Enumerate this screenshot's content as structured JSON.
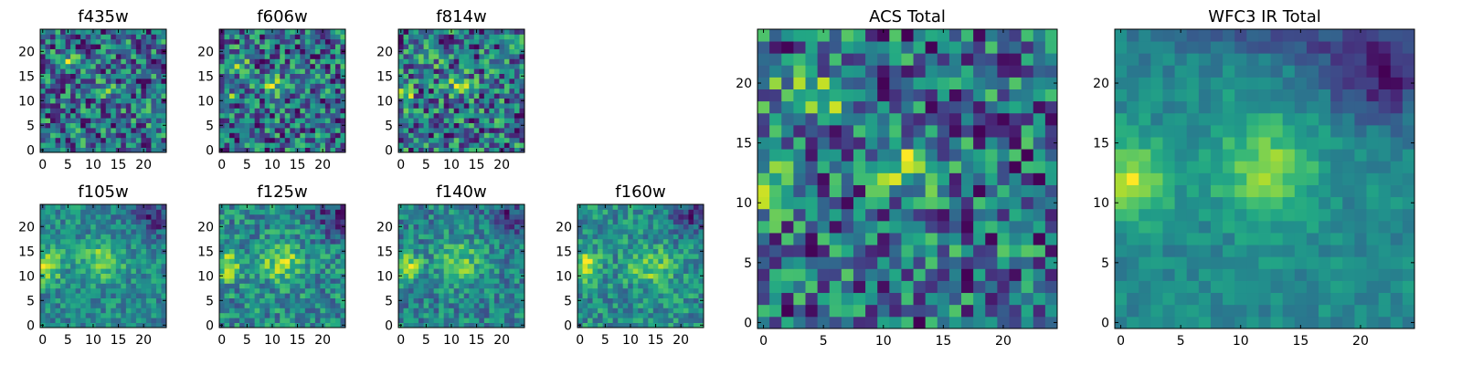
{
  "chart_data": [
    {
      "type": "heatmap",
      "title": "f435w",
      "seed": 11,
      "x_ticks": [
        "0",
        "5",
        "10",
        "15",
        "20"
      ],
      "y_ticks": [
        "0",
        "5",
        "10",
        "15",
        "20"
      ],
      "xlim": [
        0,
        24
      ],
      "ylim": [
        0,
        24
      ],
      "colormap": "viridis",
      "grid": false,
      "features": [
        {
          "x": 4,
          "y": 18,
          "sx": 2.0,
          "sy": 1.0,
          "a": 0.45
        },
        {
          "x": 12,
          "y": 13,
          "sx": 1.6,
          "sy": 1.2,
          "a": 0.35
        }
      ],
      "noise": 0.55,
      "base": 0.45
    },
    {
      "type": "heatmap",
      "title": "f606w",
      "seed": 23,
      "x_ticks": [
        "0",
        "5",
        "10",
        "15",
        "20"
      ],
      "y_ticks": [
        "0",
        "5",
        "10",
        "15",
        "20"
      ],
      "xlim": [
        0,
        24
      ],
      "ylim": [
        0,
        24
      ],
      "colormap": "viridis",
      "grid": false,
      "features": [
        {
          "x": 3,
          "y": 18,
          "sx": 1.5,
          "sy": 1.2,
          "a": 0.4
        },
        {
          "x": 11,
          "y": 13,
          "sx": 2.0,
          "sy": 1.5,
          "a": 0.45
        },
        {
          "x": 1,
          "y": 11,
          "sx": 1.0,
          "sy": 1.5,
          "a": 0.4
        }
      ],
      "noise": 0.5,
      "base": 0.45
    },
    {
      "type": "heatmap",
      "title": "f814w",
      "seed": 37,
      "x_ticks": [
        "0",
        "5",
        "10",
        "15",
        "20"
      ],
      "y_ticks": [
        "0",
        "5",
        "10",
        "15",
        "20"
      ],
      "xlim": [
        0,
        24
      ],
      "ylim": [
        0,
        24
      ],
      "colormap": "viridis",
      "grid": false,
      "features": [
        {
          "x": 1,
          "y": 11,
          "sx": 1.2,
          "sy": 1.5,
          "a": 0.5
        },
        {
          "x": 12,
          "y": 13,
          "sx": 2.0,
          "sy": 1.6,
          "a": 0.4
        },
        {
          "x": 5,
          "y": 18,
          "sx": 2.0,
          "sy": 1.2,
          "a": 0.3
        }
      ],
      "noise": 0.5,
      "base": 0.45
    },
    {
      "type": "heatmap",
      "title": "f105w",
      "seed": 41,
      "x_ticks": [
        "0",
        "5",
        "10",
        "15",
        "20"
      ],
      "y_ticks": [
        "0",
        "5",
        "10",
        "15",
        "20"
      ],
      "xlim": [
        0,
        24
      ],
      "ylim": [
        0,
        24
      ],
      "colormap": "viridis",
      "grid": false,
      "features": [
        {
          "x": 1,
          "y": 12,
          "sx": 2.0,
          "sy": 2.5,
          "a": 0.6
        },
        {
          "x": 12,
          "y": 13,
          "sx": 3.0,
          "sy": 2.5,
          "a": 0.5
        },
        {
          "x": 22,
          "y": 22,
          "sx": 3.0,
          "sy": 3.0,
          "a": -0.45
        }
      ],
      "noise": 0.28,
      "base": 0.45
    },
    {
      "type": "heatmap",
      "title": "f125w",
      "seed": 53,
      "x_ticks": [
        "0",
        "5",
        "10",
        "15",
        "20"
      ],
      "y_ticks": [
        "0",
        "5",
        "10",
        "15",
        "20"
      ],
      "xlim": [
        0,
        24
      ],
      "ylim": [
        0,
        24
      ],
      "colormap": "viridis",
      "grid": false,
      "features": [
        {
          "x": 1,
          "y": 12,
          "sx": 2.0,
          "sy": 2.0,
          "a": 0.6
        },
        {
          "x": 12,
          "y": 13,
          "sx": 3.0,
          "sy": 3.0,
          "a": 0.45
        },
        {
          "x": 22,
          "y": 22,
          "sx": 3.0,
          "sy": 3.0,
          "a": -0.4
        }
      ],
      "noise": 0.32,
      "base": 0.45
    },
    {
      "type": "heatmap",
      "title": "f140w",
      "seed": 67,
      "x_ticks": [
        "0",
        "5",
        "10",
        "15",
        "20"
      ],
      "y_ticks": [
        "0",
        "5",
        "10",
        "15",
        "20"
      ],
      "xlim": [
        0,
        24
      ],
      "ylim": [
        0,
        24
      ],
      "colormap": "viridis",
      "grid": false,
      "features": [
        {
          "x": 1,
          "y": 12,
          "sx": 2.0,
          "sy": 2.0,
          "a": 0.6
        },
        {
          "x": 12,
          "y": 13,
          "sx": 3.0,
          "sy": 3.0,
          "a": 0.45
        },
        {
          "x": 22,
          "y": 22,
          "sx": 3.0,
          "sy": 3.0,
          "a": -0.4
        }
      ],
      "noise": 0.32,
      "base": 0.45
    },
    {
      "type": "heatmap",
      "title": "f160w",
      "seed": 79,
      "x_ticks": [
        "0",
        "5",
        "10",
        "15",
        "20"
      ],
      "y_ticks": [
        "0",
        "5",
        "10",
        "15",
        "20"
      ],
      "xlim": [
        0,
        24
      ],
      "ylim": [
        0,
        24
      ],
      "colormap": "viridis",
      "grid": false,
      "features": [
        {
          "x": 1,
          "y": 12,
          "sx": 2.0,
          "sy": 2.0,
          "a": 0.6
        },
        {
          "x": 14,
          "y": 12,
          "sx": 3.0,
          "sy": 2.5,
          "a": 0.45
        },
        {
          "x": 22,
          "y": 22,
          "sx": 3.0,
          "sy": 3.0,
          "a": -0.45
        }
      ],
      "noise": 0.3,
      "base": 0.45
    },
    {
      "type": "heatmap",
      "title": "ACS Total",
      "seed": 97,
      "x_ticks": [
        "0",
        "5",
        "10",
        "15",
        "20"
      ],
      "y_ticks": [
        "0",
        "5",
        "10",
        "15",
        "20"
      ],
      "xlim": [
        0,
        24
      ],
      "ylim": [
        0,
        24
      ],
      "colormap": "viridis",
      "grid": false,
      "features": [
        {
          "x": 4,
          "y": 19,
          "sx": 2.0,
          "sy": 1.3,
          "a": 0.5
        },
        {
          "x": 12,
          "y": 13,
          "sx": 1.8,
          "sy": 1.8,
          "a": 0.45
        },
        {
          "x": 1,
          "y": 11,
          "sx": 1.0,
          "sy": 1.5,
          "a": 0.5
        }
      ],
      "noise": 0.42,
      "base": 0.5
    },
    {
      "type": "heatmap",
      "title": "WFC3 IR Total",
      "seed": 101,
      "x_ticks": [
        "0",
        "5",
        "10",
        "15",
        "20"
      ],
      "y_ticks": [
        "0",
        "5",
        "10",
        "15",
        "20"
      ],
      "xlim": [
        0,
        24
      ],
      "ylim": [
        0,
        24
      ],
      "colormap": "viridis",
      "grid": false,
      "features": [
        {
          "x": 1,
          "y": 12,
          "sx": 2.0,
          "sy": 2.3,
          "a": 0.6
        },
        {
          "x": 12,
          "y": 13,
          "sx": 3.0,
          "sy": 3.0,
          "a": 0.45
        },
        {
          "x": 22,
          "y": 21,
          "sx": 3.5,
          "sy": 3.0,
          "a": -0.55
        },
        {
          "x": 12,
          "y": 24,
          "sx": 6.0,
          "sy": 1.5,
          "a": -0.3
        }
      ],
      "noise": 0.14,
      "base": 0.45
    }
  ]
}
